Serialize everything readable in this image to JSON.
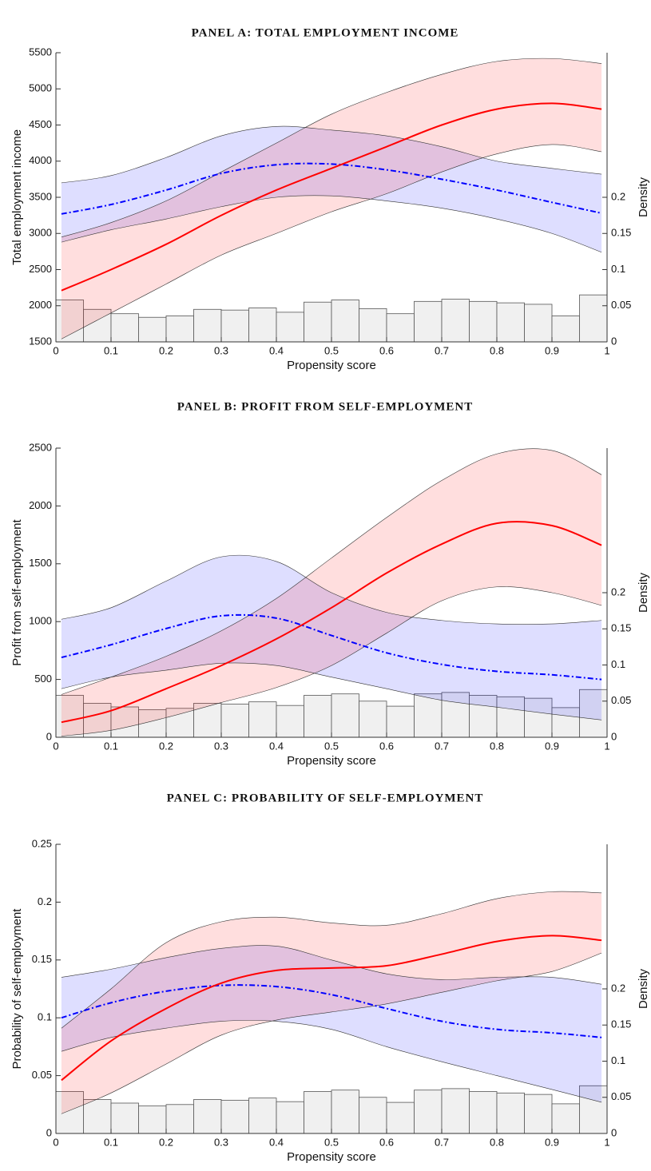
{
  "chart_data": [
    {
      "type": "line",
      "title": "PANEL A: TOTAL EMPLOYMENT INCOME",
      "xlabel": "Propensity score",
      "ylabel": "Total employment income",
      "y2label": "Density",
      "x": [
        0.01,
        0.1,
        0.2,
        0.3,
        0.4,
        0.5,
        0.6,
        0.7,
        0.8,
        0.9,
        0.99
      ],
      "xlim": [
        0,
        1
      ],
      "xticks": [
        0,
        0.1,
        0.2,
        0.3,
        0.4,
        0.5,
        0.6,
        0.7,
        0.8,
        0.9,
        1
      ],
      "ylim": [
        1500,
        5500
      ],
      "yticks": [
        1500,
        2000,
        2500,
        3000,
        3500,
        4000,
        4500,
        5000,
        5500
      ],
      "y2lim": [
        0,
        0.4
      ],
      "y2ticks": [
        0,
        0.05,
        0.1,
        0.15,
        0.2
      ],
      "series": [
        {
          "color": "#0000ff",
          "linestyle": "dashdot",
          "values": [
            3270,
            3400,
            3600,
            3830,
            3950,
            3960,
            3880,
            3750,
            3600,
            3430,
            3280
          ],
          "upper": [
            3700,
            3800,
            4050,
            4350,
            4480,
            4430,
            4350,
            4200,
            4000,
            3900,
            3820
          ],
          "lower": [
            2880,
            3050,
            3200,
            3370,
            3500,
            3520,
            3450,
            3350,
            3200,
            3000,
            2740
          ]
        },
        {
          "color": "#ff0000",
          "linestyle": "solid",
          "values": [
            2210,
            2500,
            2850,
            3250,
            3600,
            3900,
            4200,
            4500,
            4720,
            4800,
            4720
          ],
          "upper": [
            2950,
            3150,
            3450,
            3850,
            4250,
            4650,
            4950,
            5200,
            5380,
            5420,
            5350
          ],
          "lower": [
            1540,
            1900,
            2300,
            2700,
            3000,
            3300,
            3550,
            3850,
            4100,
            4230,
            4130
          ]
        }
      ],
      "histogram": {
        "axis": "y2",
        "color": "#f0f0f0",
        "bins": [
          0,
          0.05,
          0.1,
          0.15,
          0.2,
          0.25,
          0.3,
          0.35,
          0.4,
          0.45,
          0.5,
          0.55,
          0.6,
          0.65,
          0.7,
          0.75,
          0.8,
          0.85,
          0.9,
          0.95,
          1
        ],
        "counts": [
          0.058,
          0.045,
          0.039,
          0.034,
          0.036,
          0.045,
          0.044,
          0.047,
          0.041,
          0.055,
          0.058,
          0.046,
          0.039,
          0.056,
          0.059,
          0.056,
          0.054,
          0.052,
          0.036,
          0.065
        ]
      }
    },
    {
      "type": "line",
      "title": "PANEL B: PROFIT FROM SELF-EMPLOYMENT",
      "xlabel": "Propensity score",
      "ylabel": "Profit from self-employment",
      "y2label": "Density",
      "x": [
        0.01,
        0.1,
        0.2,
        0.3,
        0.4,
        0.5,
        0.6,
        0.7,
        0.8,
        0.9,
        0.99
      ],
      "xlim": [
        0,
        1
      ],
      "xticks": [
        0,
        0.1,
        0.2,
        0.3,
        0.4,
        0.5,
        0.6,
        0.7,
        0.8,
        0.9,
        1
      ],
      "ylim": [
        0,
        2500
      ],
      "yticks": [
        0,
        500,
        1000,
        1500,
        2000,
        2500
      ],
      "y2lim": [
        0,
        0.4
      ],
      "y2ticks": [
        0,
        0.05,
        0.1,
        0.15,
        0.2
      ],
      "series": [
        {
          "color": "#0000ff",
          "linestyle": "dashdot",
          "values": [
            690,
            800,
            940,
            1050,
            1030,
            880,
            730,
            630,
            570,
            540,
            500
          ],
          "upper": [
            1020,
            1120,
            1350,
            1560,
            1520,
            1250,
            1080,
            1010,
            980,
            980,
            1010
          ],
          "lower": [
            420,
            520,
            580,
            640,
            620,
            520,
            420,
            320,
            260,
            200,
            150
          ]
        },
        {
          "color": "#ff0000",
          "linestyle": "solid",
          "values": [
            130,
            230,
            420,
            620,
            850,
            1120,
            1420,
            1670,
            1850,
            1830,
            1660
          ],
          "upper": [
            370,
            520,
            700,
            920,
            1200,
            1550,
            1900,
            2220,
            2450,
            2480,
            2270
          ],
          "lower": [
            10,
            60,
            170,
            300,
            430,
            620,
            900,
            1180,
            1300,
            1250,
            1140
          ]
        }
      ],
      "histogram": {
        "axis": "y2",
        "color": "#f0f0f0",
        "bins": [
          0,
          0.05,
          0.1,
          0.15,
          0.2,
          0.25,
          0.3,
          0.35,
          0.4,
          0.45,
          0.5,
          0.55,
          0.6,
          0.65,
          0.7,
          0.75,
          0.8,
          0.85,
          0.9,
          0.95,
          1
        ],
        "counts": [
          0.058,
          0.047,
          0.042,
          0.038,
          0.04,
          0.047,
          0.046,
          0.049,
          0.044,
          0.058,
          0.06,
          0.05,
          0.043,
          0.06,
          0.062,
          0.058,
          0.056,
          0.054,
          0.041,
          0.066
        ]
      }
    },
    {
      "type": "line",
      "title": "PANEL C: PROBABILITY OF SELF-EMPLOYMENT",
      "xlabel": "Propensity score",
      "ylabel": "Probability of self-employment",
      "y2label": "Density",
      "x": [
        0.01,
        0.1,
        0.2,
        0.3,
        0.4,
        0.5,
        0.6,
        0.7,
        0.8,
        0.9,
        0.99
      ],
      "xlim": [
        0,
        1
      ],
      "xticks": [
        0,
        0.1,
        0.2,
        0.3,
        0.4,
        0.5,
        0.6,
        0.7,
        0.8,
        0.9,
        1
      ],
      "ylim": [
        0,
        0.25
      ],
      "yticks": [
        0,
        0.05,
        0.1,
        0.15,
        0.2,
        0.25
      ],
      "y2lim": [
        0,
        0.4
      ],
      "y2ticks": [
        0,
        0.05,
        0.1,
        0.15,
        0.2
      ],
      "series": [
        {
          "color": "#0000ff",
          "linestyle": "dashdot",
          "values": [
            0.1,
            0.113,
            0.123,
            0.128,
            0.127,
            0.12,
            0.108,
            0.097,
            0.09,
            0.087,
            0.083
          ],
          "upper": [
            0.135,
            0.142,
            0.152,
            0.16,
            0.162,
            0.15,
            0.138,
            0.133,
            0.135,
            0.135,
            0.129
          ],
          "lower": [
            0.071,
            0.083,
            0.091,
            0.097,
            0.097,
            0.09,
            0.075,
            0.062,
            0.05,
            0.038,
            0.027
          ]
        },
        {
          "color": "#ff0000",
          "linestyle": "solid",
          "values": [
            0.046,
            0.08,
            0.108,
            0.13,
            0.141,
            0.143,
            0.145,
            0.155,
            0.166,
            0.171,
            0.167
          ],
          "upper": [
            0.091,
            0.125,
            0.165,
            0.183,
            0.187,
            0.182,
            0.18,
            0.19,
            0.203,
            0.209,
            0.208
          ],
          "lower": [
            0.017,
            0.035,
            0.06,
            0.085,
            0.098,
            0.105,
            0.112,
            0.122,
            0.132,
            0.14,
            0.156
          ]
        }
      ],
      "histogram": {
        "axis": "y2",
        "color": "#f0f0f0",
        "bins": [
          0,
          0.05,
          0.1,
          0.15,
          0.2,
          0.25,
          0.3,
          0.35,
          0.4,
          0.45,
          0.5,
          0.55,
          0.6,
          0.65,
          0.7,
          0.75,
          0.8,
          0.85,
          0.9,
          0.95,
          1
        ],
        "counts": [
          0.058,
          0.047,
          0.042,
          0.038,
          0.04,
          0.047,
          0.046,
          0.049,
          0.044,
          0.058,
          0.06,
          0.05,
          0.043,
          0.06,
          0.062,
          0.058,
          0.056,
          0.054,
          0.041,
          0.066
        ]
      }
    }
  ]
}
